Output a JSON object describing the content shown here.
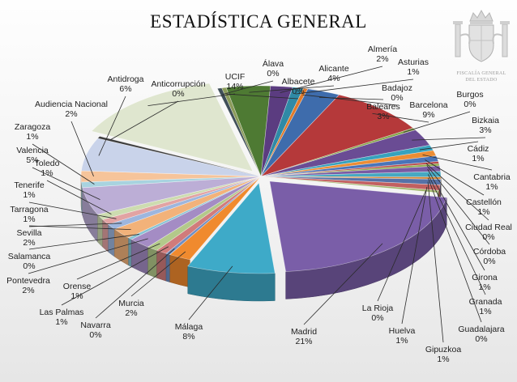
{
  "chart_data": {
    "type": "pie",
    "title": "ESTADÍSTICA GENERAL",
    "three_d": true,
    "exploded_slices": [
      "UCIF",
      "Madrid",
      "Málaga"
    ],
    "slices": [
      {
        "name": "Álava",
        "label": "0%",
        "value": 0.4,
        "color": "#3f4e58"
      },
      {
        "name": "Albacete",
        "label": "0%",
        "value": 0.4,
        "color": "#8b9b5a"
      },
      {
        "name": "Alicante",
        "label": "4%",
        "value": 4,
        "color": "#4e7a33"
      },
      {
        "name": "Almería",
        "label": "2%",
        "value": 2,
        "color": "#5b3c80"
      },
      {
        "name": "Asturias",
        "label": "1%",
        "value": 1,
        "color": "#2f8aa6"
      },
      {
        "name": "Badajoz",
        "label": "0%",
        "value": 0.4,
        "color": "#e07a2a"
      },
      {
        "name": "Baleares",
        "label": "3%",
        "value": 3,
        "color": "#3e6cac"
      },
      {
        "name": "Barcelona",
        "label": "9%",
        "value": 9,
        "color": "#b5393a"
      },
      {
        "name": "Burgos",
        "label": "0%",
        "value": 0.4,
        "color": "#84a447"
      },
      {
        "name": "Bizkaia",
        "label": "3%",
        "value": 3,
        "color": "#6a4c94"
      },
      {
        "name": "Cádiz",
        "label": "1%",
        "value": 1,
        "color": "#37a2bd"
      },
      {
        "name": "Cantabria",
        "label": "1%",
        "value": 1,
        "color": "#ec8d34"
      },
      {
        "name": "Castellón",
        "label": "1%",
        "value": 1,
        "color": "#4a74b8"
      },
      {
        "name": "Ciudad Real",
        "label": "0%",
        "value": 0.4,
        "color": "#b94a4a"
      },
      {
        "name": "Córdoba",
        "label": "0%",
        "value": 0.4,
        "color": "#8fad4f"
      },
      {
        "name": "Girona",
        "label": "1%",
        "value": 1,
        "color": "#7a5aa3"
      },
      {
        "name": "Granada",
        "label": "1%",
        "value": 1,
        "color": "#46a9c2"
      },
      {
        "name": "Guadalajara",
        "label": "0%",
        "value": 0.4,
        "color": "#d88a3a"
      },
      {
        "name": "Gipuzkoa",
        "label": "1%",
        "value": 1,
        "color": "#5672a8"
      },
      {
        "name": "Huelva",
        "label": "1%",
        "value": 1,
        "color": "#c26060"
      },
      {
        "name": "La Rioja",
        "label": "0%",
        "value": 0.4,
        "color": "#a0b46a"
      },
      {
        "name": "Madrid",
        "label": "21%",
        "value": 21,
        "color": "#7a5ea8"
      },
      {
        "name": "Málaga",
        "label": "8%",
        "value": 8,
        "color": "#3eaac8"
      },
      {
        "name": "Murcia",
        "label": "2%",
        "value": 2,
        "color": "#f08a2e"
      },
      {
        "name": "Navarra",
        "label": "0%",
        "value": 0.4,
        "color": "#6f8fc4"
      },
      {
        "name": "Las Palmas",
        "label": "1%",
        "value": 1,
        "color": "#d17b7b"
      },
      {
        "name": "Orense",
        "label": "1%",
        "value": 1,
        "color": "#b3c98a"
      },
      {
        "name": "Pontevedra",
        "label": "2%",
        "value": 2,
        "color": "#a48cc4"
      },
      {
        "name": "Salamanca",
        "label": "0%",
        "value": 0.4,
        "color": "#86c3d4"
      },
      {
        "name": "Sevilla",
        "label": "2%",
        "value": 2,
        "color": "#f2b27a"
      },
      {
        "name": "Tarragona",
        "label": "1%",
        "value": 1,
        "color": "#9db6de"
      },
      {
        "name": "Tenerife",
        "label": "1%",
        "value": 1,
        "color": "#e2a3a3"
      },
      {
        "name": "Toledo",
        "label": "1%",
        "value": 1,
        "color": "#cddcb0"
      },
      {
        "name": "Valencia",
        "label": "5%",
        "value": 5,
        "color": "#bcaed6"
      },
      {
        "name": "Zaragoza",
        "label": "1%",
        "value": 1,
        "color": "#a8d3df"
      },
      {
        "name": "Audiencia Nacional",
        "label": "2%",
        "value": 2,
        "color": "#f6c49a"
      },
      {
        "name": "Antidroga",
        "label": "6%",
        "value": 6,
        "color": "#c9d3ea"
      },
      {
        "name": "Anticorrupción",
        "label": "0%",
        "value": 0.4,
        "color": "#3b3b3b"
      },
      {
        "name": "UCIF",
        "label": "14%",
        "value": 14,
        "color": "#dfe6cf"
      }
    ]
  },
  "emblem": {
    "line1": "FISCALÍA GENERAL",
    "line2": "DEL ESTADO"
  }
}
